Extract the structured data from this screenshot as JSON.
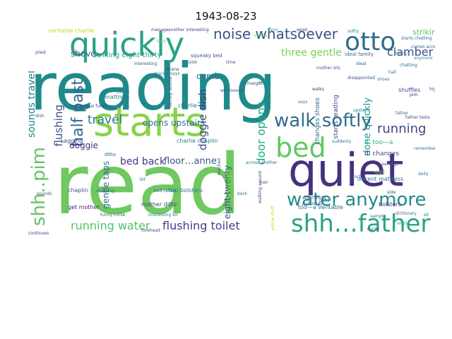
{
  "title": "1943-08-23",
  "words": [
    {
      "text": "reading",
      "color": "#1f8a8a"
    },
    {
      "text": "read",
      "color": "#6fc860"
    },
    {
      "text": "starts",
      "color": "#8ad24a"
    },
    {
      "text": "quiet",
      "color": "#46317e"
    },
    {
      "text": "quickly",
      "color": "#2ea087"
    },
    {
      "text": "otto",
      "color": "#2d6f8e"
    },
    {
      "text": "shh…father",
      "color": "#2aa283"
    },
    {
      "text": "shh..pim",
      "color": "#65c366"
    },
    {
      "text": "bed",
      "color": "#5ec962"
    },
    {
      "text": "walk softly",
      "color": "#2f6c8e"
    },
    {
      "text": "water anymore",
      "color": "#228b8d"
    },
    {
      "text": "noise whatsoever",
      "color": "#3b528b"
    },
    {
      "text": "running water",
      "color": "#52c569"
    },
    {
      "text": "flushing toilet",
      "color": "#433e85"
    },
    {
      "text": "half past",
      "color": "#31688e"
    },
    {
      "text": "running",
      "color": "#404788"
    },
    {
      "text": "travel",
      "color": "#2c728e"
    },
    {
      "text": "flushing",
      "color": "#3d4e8a"
    },
    {
      "text": "sounds travel",
      "color": "#26828e"
    },
    {
      "text": "door opens",
      "color": "#22a884"
    },
    {
      "text": "doggie dish",
      "color": "#3e4989"
    },
    {
      "text": "eight-twenty",
      "color": "#3a548c"
    },
    {
      "text": "three gentle",
      "color": "#7ad151"
    },
    {
      "text": "bed back",
      "color": "#453581"
    },
    {
      "text": "floor…anne",
      "color": "#39568c"
    },
    {
      "text": "gentle taps",
      "color": "#2f6b8e"
    },
    {
      "text": "done quickly",
      "color": "#21918c"
    },
    {
      "text": "clamber",
      "color": "#3f4889"
    },
    {
      "text": "striking",
      "color": "#5cc863"
    },
    {
      "text": "shove",
      "color": "#355f8d"
    },
    {
      "text": "comb",
      "color": "#2b748e"
    },
    {
      "text": "doggie",
      "color": "#472d7b"
    },
    {
      "text": "opens upstairs",
      "color": "#2c738e"
    },
    {
      "text": "starts reading",
      "color": "#3b528b"
    },
    {
      "text": "changes shoes",
      "color": "#31688e"
    },
    {
      "text": "striking eight-thirty",
      "color": "#1fa088"
    },
    {
      "text": "d. changes",
      "color": "#3f4788"
    },
    {
      "text": "d. too—a",
      "color": "#2db27d"
    },
    {
      "text": "mother ditto",
      "color": "#404688"
    },
    {
      "text": "chaplin",
      "color": "#3a538b"
    },
    {
      "text": "get mother",
      "color": "#482576"
    },
    {
      "text": "two bolsters",
      "color": "#2a788e"
    },
    {
      "text": "decent mattress",
      "color": "#27808e"
    },
    {
      "text": "bolsters",
      "color": "#46307e"
    },
    {
      "text": "too—a veritable",
      "color": "#306a8e"
    },
    {
      "text": "veritable charlie",
      "color": "#b5de2b"
    },
    {
      "text": "charlie chaplin",
      "color": "#277f8e"
    },
    {
      "text": "shuffles",
      "color": "#3e4a89"
    },
    {
      "text": "sagging",
      "color": "#3b528b"
    },
    {
      "text": "mattress",
      "color": "#287d8e"
    },
    {
      "text": "ditto",
      "color": "#2f6c8e"
    },
    {
      "text": "charlie",
      "color": "#2a788e"
    },
    {
      "text": "family scene",
      "color": "#3b528b"
    },
    {
      "text": "squeaky bed",
      "color": "#3a548c"
    },
    {
      "text": "ideal family",
      "color": "#31688e"
    },
    {
      "text": "mysterious furniture",
      "color": "#3e4989"
    },
    {
      "text": "interesting bit",
      "color": "#25838e"
    },
    {
      "text": "dish",
      "color": "#38598c"
    },
    {
      "text": "sounds",
      "color": "#38588c"
    },
    {
      "text": "whatsoever",
      "color": "#3b528b"
    },
    {
      "text": "softly",
      "color": "#21908d"
    },
    {
      "text": "anymore",
      "color": "#1e9b8a"
    },
    {
      "text": "another interesting",
      "color": "#443a83"
    },
    {
      "text": "opens",
      "color": "#5ec962"
    },
    {
      "text": "walking around",
      "color": "#3f4889"
    },
    {
      "text": "suddenly",
      "color": "#2b748e"
    },
    {
      "text": "pulls",
      "color": "#365d8d"
    },
    {
      "text": "taps",
      "color": "#5cc863"
    },
    {
      "text": "floor",
      "color": "#1f9f88"
    },
    {
      "text": "toilet",
      "color": "#2e6e8e"
    },
    {
      "text": "eight-thirty",
      "color": "#3d4d8a"
    },
    {
      "text": "father tests",
      "color": "#3e4a89"
    },
    {
      "text": "pim",
      "color": "#482878"
    },
    {
      "text": "comes across",
      "color": "#34618d"
    },
    {
      "text": "starts chatting",
      "color": "#2c728e"
    },
    {
      "text": "upstairs",
      "color": "#26828e"
    },
    {
      "text": "quickly says",
      "color": "#2a788e"
    },
    {
      "text": "interesting",
      "color": "#375a8c"
    },
    {
      "text": "cleans",
      "color": "#2c718e"
    },
    {
      "text": "margot",
      "color": "#462f7e"
    },
    {
      "text": "past",
      "color": "#1f978b"
    },
    {
      "text": "back",
      "color": "#2d708e"
    },
    {
      "text": "shoes",
      "color": "#25848e"
    },
    {
      "text": "concentration",
      "color": "#a2da37"
    },
    {
      "text": "disappointed",
      "color": "#3c4f8a"
    },
    {
      "text": "chatting",
      "color": "#2f6c8e"
    },
    {
      "text": "passage",
      "color": "#3a548c"
    },
    {
      "text": "continues",
      "color": "#443983"
    },
    {
      "text": "forehead",
      "color": "#3b528b"
    },
    {
      "text": "walks",
      "color": "#46327e"
    },
    {
      "text": "ideal",
      "color": "#355f8d"
    },
    {
      "text": "scene",
      "color": "#414487"
    },
    {
      "text": "funny",
      "color": "#20928c"
    },
    {
      "text": "funny curse",
      "color": "#2c728e"
    },
    {
      "text": "studying",
      "color": "#2e6f8e"
    },
    {
      "text": "dictionary",
      "color": "#2a768e"
    },
    {
      "text": "says",
      "color": "#277f8e"
    },
    {
      "text": "hair",
      "color": "#3f4889"
    },
    {
      "text": "sample",
      "color": "#2a788e"
    },
    {
      "text": "night",
      "color": "#7fd34e"
    },
    {
      "text": "time right",
      "color": "#8bd646"
    },
    {
      "text": "high",
      "color": "#3d4e8a"
    },
    {
      "text": "reached",
      "color": "#3b528b"
    },
    {
      "text": "hall",
      "color": "#2e6e8e"
    },
    {
      "text": "father",
      "color": "#2a788e"
    },
    {
      "text": "curse",
      "color": "#33638d"
    },
    {
      "text": "yellow stuff",
      "color": "#c2df23"
    },
    {
      "text": "mother sits",
      "color": "#3b528b"
    },
    {
      "text": "bit",
      "color": "#2d708e"
    },
    {
      "text": "side",
      "color": "#3e4a89"
    },
    {
      "text": "piled",
      "color": "#404688"
    },
    {
      "text": "pull away",
      "color": "#2c728e"
    },
    {
      "text": "manage",
      "color": "#433d84"
    },
    {
      "text": "whole",
      "color": "#35b779"
    },
    {
      "text": "lunch",
      "color": "#3b528b"
    },
    {
      "text": "bed cereal",
      "color": "#2f6c8e"
    },
    {
      "text": "sit",
      "color": "#277f8e"
    },
    {
      "text": "week",
      "color": "#3a548c"
    },
    {
      "text": "remember",
      "color": "#2a788e"
    },
    {
      "text": "time",
      "color": "#39568c"
    },
    {
      "text": "across another",
      "color": "#2c728e"
    },
    {
      "text": "daily",
      "color": "#2e6e8e"
    }
  ]
}
